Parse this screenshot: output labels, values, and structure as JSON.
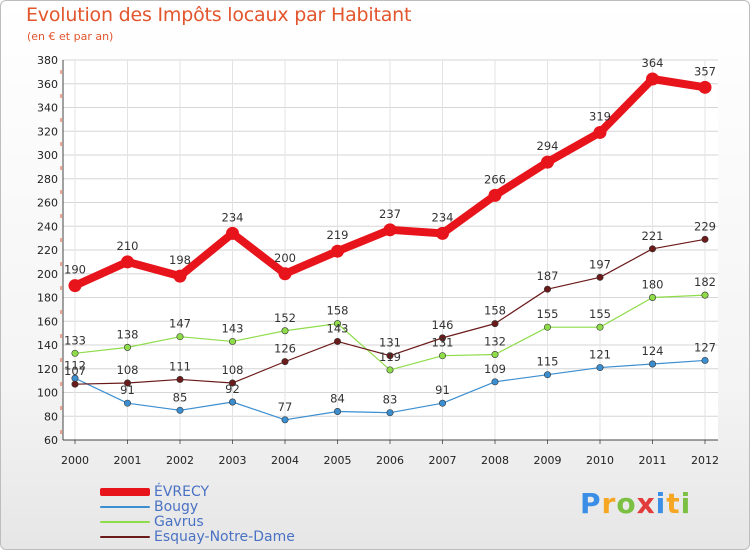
{
  "header": {
    "title": "Evolution des Impôts locaux par Habitant",
    "subtitle": "(en € et par an)"
  },
  "brand": {
    "letters": [
      "P",
      "r",
      "o",
      "x",
      "i",
      "t",
      "i"
    ],
    "colors": [
      "#3a8ee6",
      "#f5a623",
      "#7bc043",
      "#e23b3b",
      "#3a8ee6",
      "#f5a623",
      "#7bc043"
    ]
  },
  "chart_data": {
    "type": "line",
    "title": "Evolution des Impôts locaux par Habitant",
    "subtitle": "(en € et par an)",
    "xlabel": "",
    "ylabel": "",
    "x": [
      2000,
      2001,
      2002,
      2003,
      2004,
      2005,
      2006,
      2007,
      2008,
      2009,
      2010,
      2011,
      2012
    ],
    "ylim": [
      60,
      380
    ],
    "yticks": [
      60,
      80,
      100,
      120,
      140,
      160,
      180,
      200,
      220,
      240,
      260,
      280,
      300,
      320,
      340,
      360,
      380
    ],
    "grid": true,
    "legend": "bottom-left",
    "series": [
      {
        "name": "ÉVRECY",
        "color": "#e8141b",
        "values": [
          190,
          210,
          198,
          234,
          200,
          219,
          237,
          234,
          266,
          294,
          319,
          364,
          357
        ]
      },
      {
        "name": "Bougy",
        "color": "#3b8ed0",
        "values": [
          112,
          91,
          85,
          92,
          77,
          84,
          83,
          91,
          109,
          115,
          121,
          124,
          127
        ]
      },
      {
        "name": "Gavrus",
        "color": "#8fdc4a",
        "values": [
          133,
          138,
          147,
          143,
          152,
          158,
          119,
          131,
          132,
          155,
          155,
          180,
          182
        ]
      },
      {
        "name": "Esquay-Notre-Dame",
        "color": "#6b1a1a",
        "values": [
          107,
          108,
          111,
          108,
          126,
          143,
          131,
          146,
          158,
          187,
          197,
          221,
          229
        ]
      }
    ]
  }
}
